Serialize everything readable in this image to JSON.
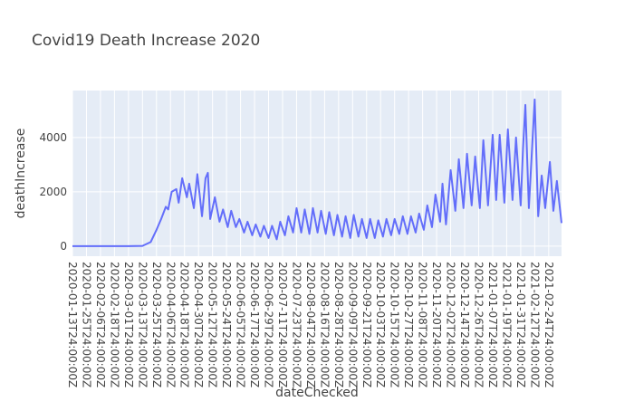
{
  "chart_data": {
    "type": "line",
    "title": "Covid19 Death Increase 2020",
    "x_label": "dateChecked",
    "y_label": "deathIncrease",
    "grid": true,
    "background": "#e5ecf6",
    "xlim": [
      "2020-01-13",
      "2021-03-07"
    ],
    "ylim": [
      -370,
      5730
    ],
    "yticks": [
      0,
      2000,
      4000
    ],
    "xticks": [
      {
        "value": "2020-01-13",
        "label": "2020-01-13T24:00:00Z"
      },
      {
        "value": "2020-01-25",
        "label": "2020-01-25T24:00:00Z"
      },
      {
        "value": "2020-02-06",
        "label": "2020-02-06T24:00:00Z"
      },
      {
        "value": "2020-02-18",
        "label": "2020-02-18T24:00:00Z"
      },
      {
        "value": "2020-03-01",
        "label": "2020-03-01T24:00:00Z"
      },
      {
        "value": "2020-03-13",
        "label": "2020-03-13T24:00:00Z"
      },
      {
        "value": "2020-03-25",
        "label": "2020-03-25T24:00:00Z"
      },
      {
        "value": "2020-04-06",
        "label": "2020-04-06T24:00:00Z"
      },
      {
        "value": "2020-04-18",
        "label": "2020-04-18T24:00:00Z"
      },
      {
        "value": "2020-04-30",
        "label": "2020-04-30T24:00:00Z"
      },
      {
        "value": "2020-05-12",
        "label": "2020-05-12T24:00:00Z"
      },
      {
        "value": "2020-05-24",
        "label": "2020-05-24T24:00:00Z"
      },
      {
        "value": "2020-06-05",
        "label": "2020-06-05T24:00:00Z"
      },
      {
        "value": "2020-06-17",
        "label": "2020-06-17T24:00:00Z"
      },
      {
        "value": "2020-06-29",
        "label": "2020-06-29T24:00:00Z"
      },
      {
        "value": "2020-07-11",
        "label": "2020-07-11T24:00:00Z"
      },
      {
        "value": "2020-07-23",
        "label": "2020-07-23T24:00:00Z"
      },
      {
        "value": "2020-08-04",
        "label": "2020-08-04T24:00:00Z"
      },
      {
        "value": "2020-08-16",
        "label": "2020-08-16T24:00:00Z"
      },
      {
        "value": "2020-08-28",
        "label": "2020-08-28T24:00:00Z"
      },
      {
        "value": "2020-09-09",
        "label": "2020-09-09T24:00:00Z"
      },
      {
        "value": "2020-09-21",
        "label": "2020-09-21T24:00:00Z"
      },
      {
        "value": "2020-10-03",
        "label": "2020-10-03T24:00:00Z"
      },
      {
        "value": "2020-10-15",
        "label": "2020-10-15T24:00:00Z"
      },
      {
        "value": "2020-10-27",
        "label": "2020-10-27T24:00:00Z"
      },
      {
        "value": "2020-11-08",
        "label": "2020-11-08T24:00:00Z"
      },
      {
        "value": "2020-11-20",
        "label": "2020-11-20T24:00:00Z"
      },
      {
        "value": "2020-12-02",
        "label": "2020-12-02T24:00:00Z"
      },
      {
        "value": "2020-12-14",
        "label": "2020-12-14T24:00:00Z"
      },
      {
        "value": "2020-12-26",
        "label": "2020-12-26T24:00:00Z"
      },
      {
        "value": "2021-01-07",
        "label": "2021-01-07T24:00:00Z"
      },
      {
        "value": "2021-01-19",
        "label": "2021-01-19T24:00:00Z"
      },
      {
        "value": "2021-01-31",
        "label": "2021-01-31T24:00:00Z"
      },
      {
        "value": "2021-02-12",
        "label": "2021-02-12T24:00:00Z"
      },
      {
        "value": "2021-02-24",
        "label": "2021-02-24T24:00:00Z"
      }
    ],
    "x": [
      "2020-01-13",
      "2020-03-01",
      "2020-03-13",
      "2020-03-20",
      "2020-03-25",
      "2020-03-29",
      "2020-04-02",
      "2020-04-04",
      "2020-04-07",
      "2020-04-11",
      "2020-04-13",
      "2020-04-16",
      "2020-04-20",
      "2020-04-22",
      "2020-04-26",
      "2020-04-29",
      "2020-05-03",
      "2020-05-06",
      "2020-05-08",
      "2020-05-10",
      "2020-05-14",
      "2020-05-18",
      "2020-05-21",
      "2020-05-25",
      "2020-05-28",
      "2020-06-01",
      "2020-06-04",
      "2020-06-08",
      "2020-06-11",
      "2020-06-15",
      "2020-06-18",
      "2020-06-22",
      "2020-06-25",
      "2020-06-29",
      "2020-07-02",
      "2020-07-06",
      "2020-07-09",
      "2020-07-13",
      "2020-07-16",
      "2020-07-20",
      "2020-07-23",
      "2020-07-27",
      "2020-07-30",
      "2020-08-03",
      "2020-08-06",
      "2020-08-10",
      "2020-08-13",
      "2020-08-17",
      "2020-08-20",
      "2020-08-24",
      "2020-08-27",
      "2020-08-31",
      "2020-09-03",
      "2020-09-07",
      "2020-09-10",
      "2020-09-14",
      "2020-09-17",
      "2020-09-21",
      "2020-09-24",
      "2020-09-28",
      "2020-10-01",
      "2020-10-05",
      "2020-10-08",
      "2020-10-12",
      "2020-10-15",
      "2020-10-19",
      "2020-10-22",
      "2020-10-26",
      "2020-10-29",
      "2020-11-02",
      "2020-11-05",
      "2020-11-09",
      "2020-11-12",
      "2020-11-16",
      "2020-11-19",
      "2020-11-23",
      "2020-11-25",
      "2020-11-28",
      "2020-12-02",
      "2020-12-06",
      "2020-12-09",
      "2020-12-13",
      "2020-12-16",
      "2020-12-20",
      "2020-12-23",
      "2020-12-27",
      "2020-12-30",
      "2021-01-03",
      "2021-01-07",
      "2021-01-10",
      "2021-01-13",
      "2021-01-17",
      "2021-01-20",
      "2021-01-24",
      "2021-01-27",
      "2021-01-31",
      "2021-02-02",
      "2021-02-04",
      "2021-02-07",
      "2021-02-12",
      "2021-02-15",
      "2021-02-18",
      "2021-02-21",
      "2021-02-25",
      "2021-02-28",
      "2021-03-03",
      "2021-03-07"
    ],
    "series": [
      {
        "name": "deathIncrease",
        "color": "#636efa",
        "values": [
          0,
          2,
          10,
          150,
          600,
          1000,
          1450,
          1350,
          2000,
          2100,
          1600,
          2500,
          1800,
          2300,
          1400,
          2650,
          1100,
          2500,
          2700,
          1000,
          1800,
          900,
          1350,
          700,
          1300,
          700,
          1000,
          500,
          900,
          400,
          800,
          350,
          750,
          300,
          750,
          250,
          900,
          400,
          1100,
          500,
          1400,
          500,
          1350,
          450,
          1400,
          500,
          1300,
          450,
          1250,
          400,
          1150,
          350,
          1100,
          300,
          1150,
          350,
          1000,
          300,
          1000,
          300,
          950,
          350,
          1000,
          400,
          1000,
          450,
          1100,
          450,
          1100,
          500,
          1200,
          600,
          1500,
          700,
          1900,
          900,
          2300,
          800,
          2800,
          1300,
          3200,
          1400,
          3400,
          1500,
          3300,
          1400,
          3900,
          1500,
          4100,
          1700,
          4100,
          1600,
          4300,
          1700,
          4000,
          1500,
          3600,
          5200,
          1400,
          5400,
          1100,
          2600,
          1400,
          3100,
          1300,
          2400,
          850
        ]
      }
    ]
  }
}
